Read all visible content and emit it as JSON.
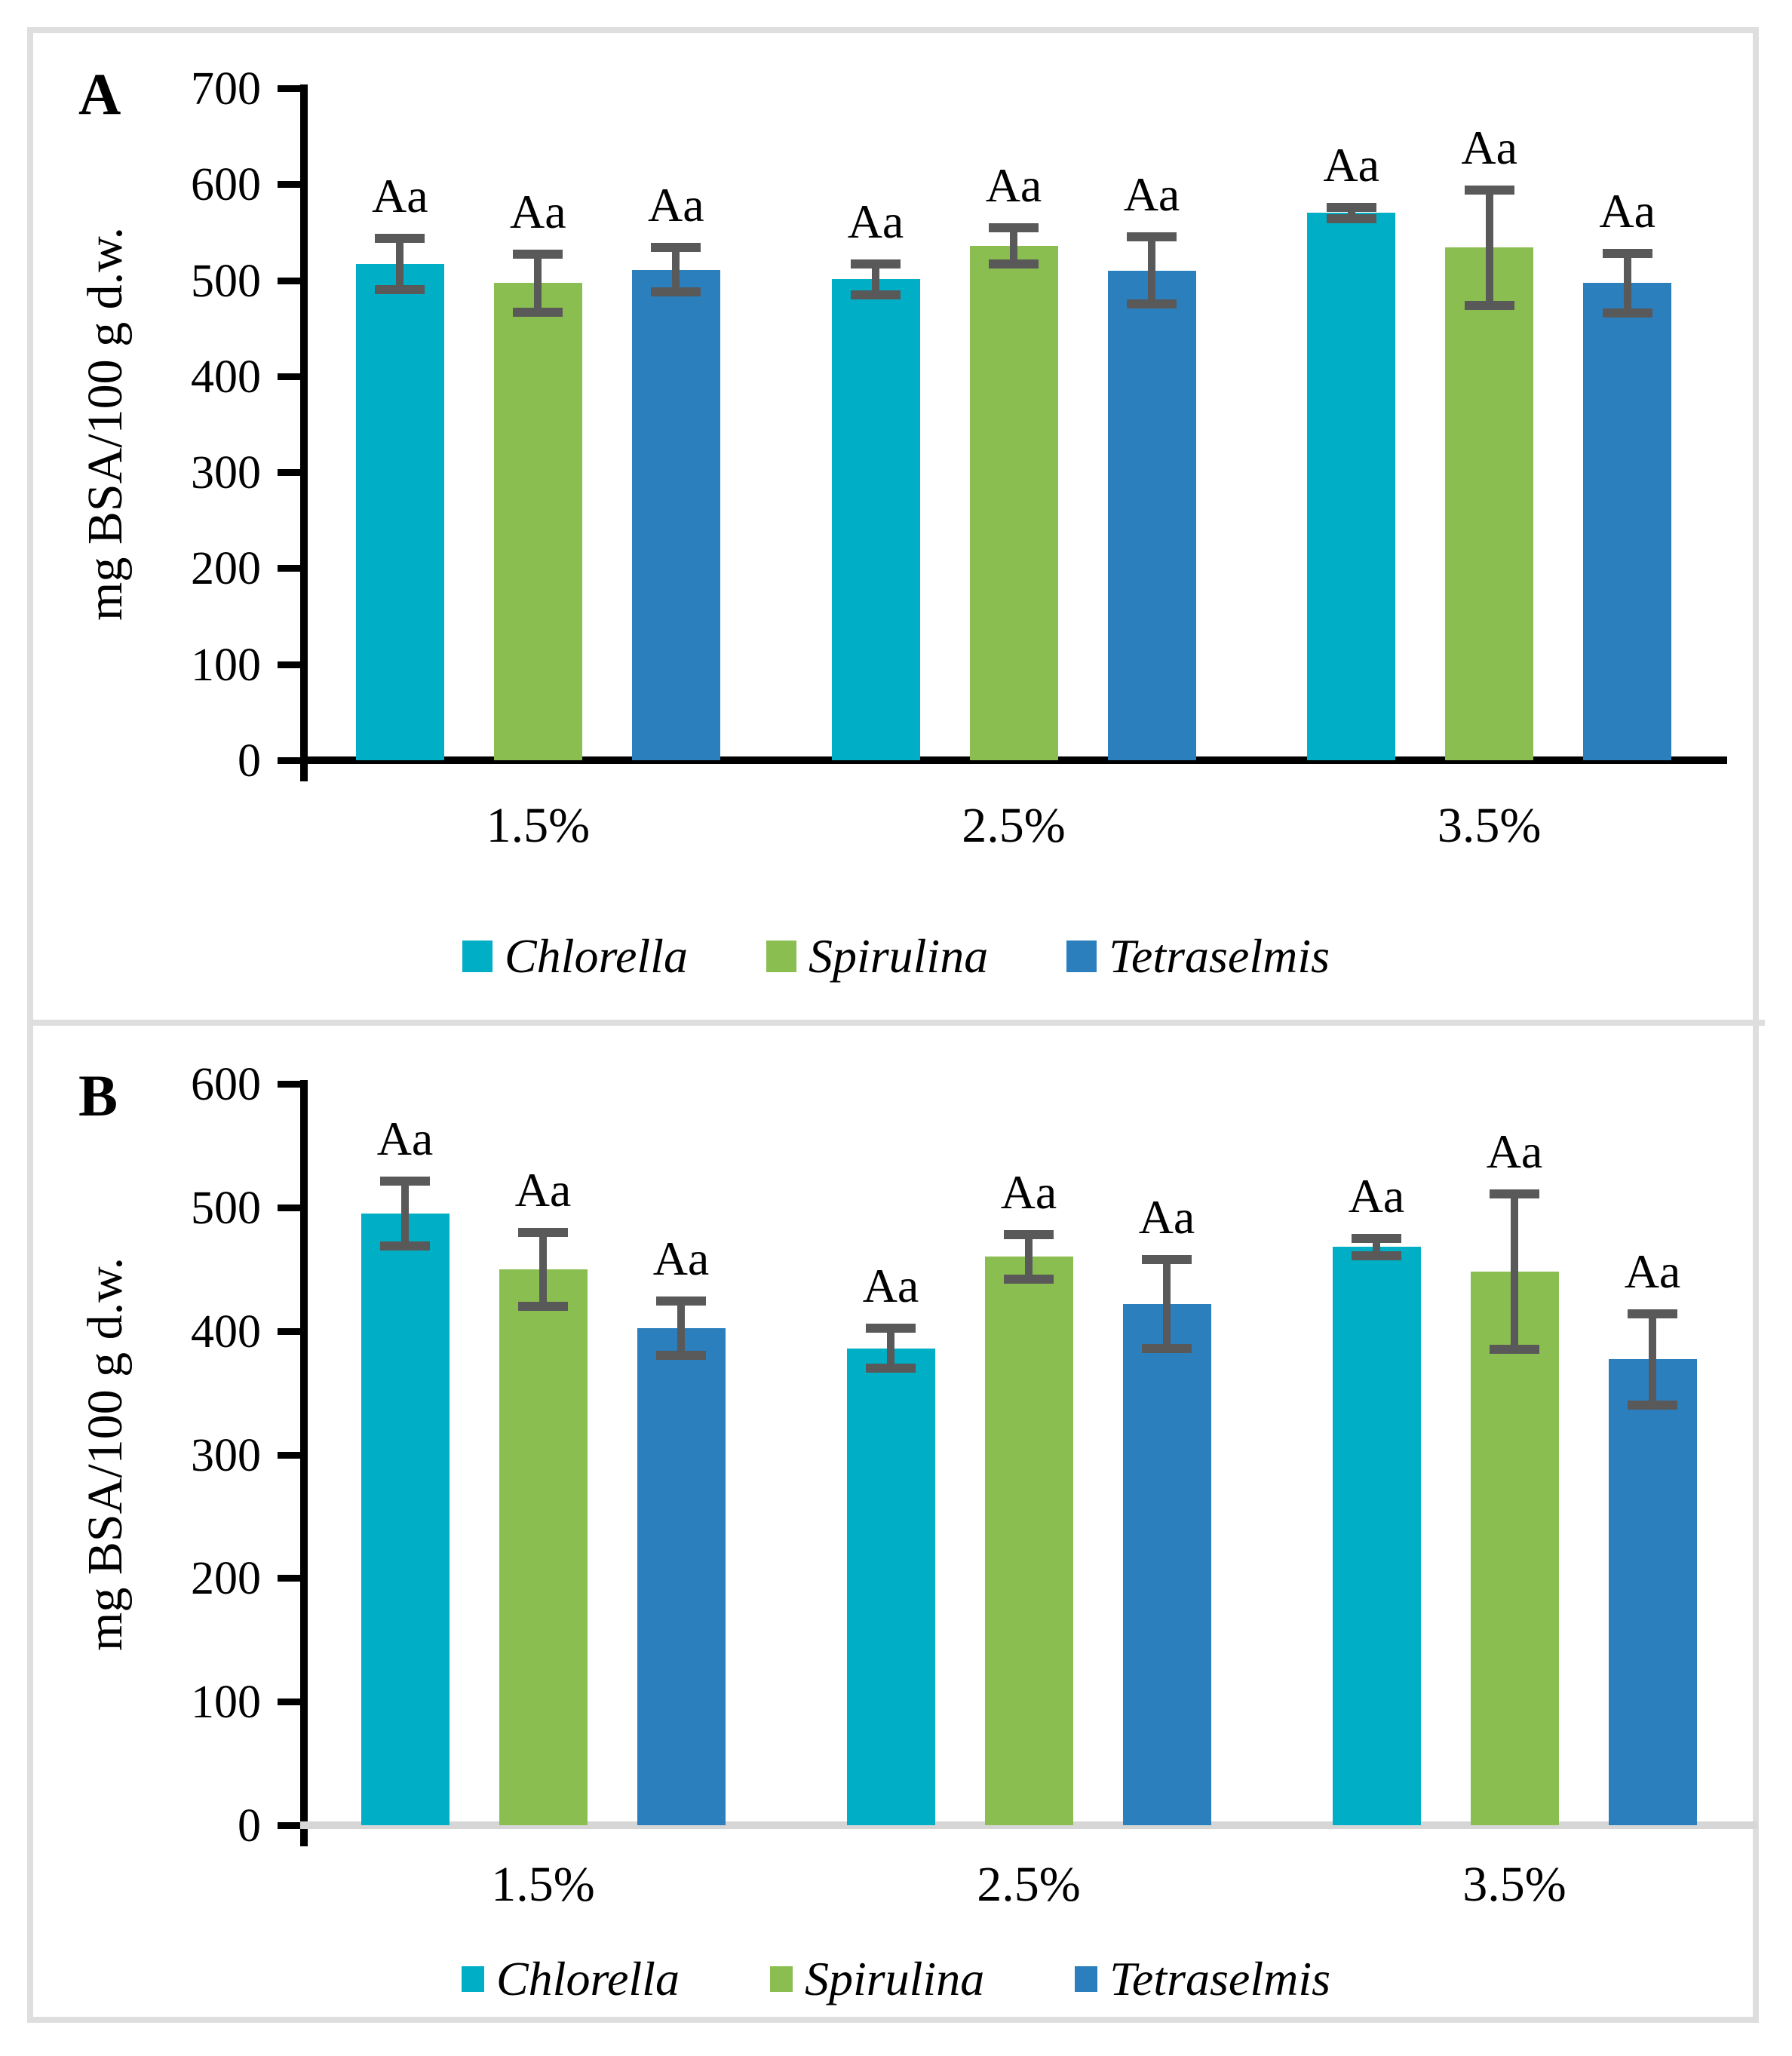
{
  "figure_title": "",
  "colors": {
    "chlorella": "#00AEC6",
    "spirulina": "#8BBE50",
    "tetraselmis": "#2B7FBD",
    "error_bar": "#595959",
    "axis": "#000000",
    "panel_b_baseline": "#D6D6D6",
    "frame": "#DEDEDE"
  },
  "chart_data": [
    {
      "type": "bar",
      "panel_label": "A",
      "title": "",
      "xlabel": "",
      "ylabel": "mg BSA/100 g d.w.",
      "ylim": [
        0,
        700
      ],
      "ytick_step": 100,
      "ytick_labels": [
        "0",
        "100",
        "200",
        "300",
        "400",
        "500",
        "600",
        "700"
      ],
      "grid": false,
      "legend_position": "bottom",
      "categories": [
        "1.5%",
        "2.5%",
        "3.5%"
      ],
      "series": [
        {
          "name": "Chlorella",
          "color_key": "chlorella",
          "values": [
            517,
            501,
            570
          ],
          "errors": [
            27,
            16,
            6
          ],
          "sig_labels": [
            "Aa",
            "Aa",
            "Aa"
          ]
        },
        {
          "name": "Spirulina",
          "color_key": "spirulina",
          "values": [
            497,
            536,
            534
          ],
          "errors": [
            30,
            19,
            60
          ],
          "sig_labels": [
            "Aa",
            "Aa",
            "Aa"
          ]
        },
        {
          "name": "Tetraselmis",
          "color_key": "tetraselmis",
          "values": [
            511,
            510,
            497
          ],
          "errors": [
            23,
            35,
            31
          ],
          "sig_labels": [
            "Aa",
            "Aa",
            "Aa"
          ]
        }
      ]
    },
    {
      "type": "bar",
      "panel_label": "B",
      "title": "",
      "xlabel": "",
      "ylabel": "mg BSA/100 g d.w.",
      "ylim": [
        0,
        600
      ],
      "ytick_step": 100,
      "ytick_labels": [
        "0",
        "100",
        "200",
        "300",
        "400",
        "500",
        "600"
      ],
      "grid": false,
      "legend_position": "bottom",
      "categories": [
        "1.5%",
        "2.5%",
        "3.5%"
      ],
      "series": [
        {
          "name": "Chlorella",
          "color_key": "chlorella",
          "values": [
            495,
            386,
            468
          ],
          "errors": [
            26,
            16,
            7
          ],
          "sig_labels": [
            "Aa",
            "Aa",
            "Aa"
          ]
        },
        {
          "name": "Spirulina",
          "color_key": "spirulina",
          "values": [
            450,
            460,
            448
          ],
          "errors": [
            30,
            18,
            63
          ],
          "sig_labels": [
            "Aa",
            "Aa",
            "Aa"
          ]
        },
        {
          "name": "Tetraselmis",
          "color_key": "tetraselmis",
          "values": [
            402,
            422,
            377
          ],
          "errors": [
            22,
            36,
            37
          ],
          "sig_labels": [
            "Aa",
            "Aa",
            "Aa"
          ]
        }
      ]
    }
  ]
}
